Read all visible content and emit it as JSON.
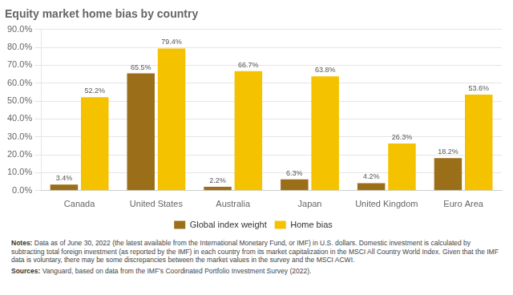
{
  "chart_data": {
    "type": "bar",
    "title": "Equity market home bias by country",
    "categories": [
      "Canada",
      "United States",
      "Australia",
      "Japan",
      "United Kingdom",
      "Euro Area"
    ],
    "series": [
      {
        "name": "Global index weight",
        "color": "#9B6E1A",
        "values": [
          3.4,
          65.5,
          2.2,
          6.3,
          4.2,
          18.2
        ],
        "value_labels": [
          "3.4%",
          "65.5%",
          "2.2%",
          "6.3%",
          "4.2%",
          "18.2%"
        ]
      },
      {
        "name": "Home bias",
        "color": "#F5C200",
        "values": [
          52.2,
          79.4,
          66.7,
          63.8,
          26.3,
          53.6
        ],
        "value_labels": [
          "52.2%",
          "79.4%",
          "66.7%",
          "63.8%",
          "26.3%",
          "53.6%"
        ]
      }
    ],
    "ylim": [
      0,
      90
    ],
    "yticks": [
      {
        "value": 0,
        "label": "0.0%"
      },
      {
        "value": 10,
        "label": "10.0%"
      },
      {
        "value": 20,
        "label": "20.0%"
      },
      {
        "value": 30,
        "label": "30.0%"
      },
      {
        "value": 40,
        "label": "40.0%"
      },
      {
        "value": 50,
        "label": "50.0%"
      },
      {
        "value": 60,
        "label": "60.0%"
      },
      {
        "value": 70,
        "label": "70.0%"
      },
      {
        "value": 80,
        "label": "80.0%"
      },
      {
        "value": 90,
        "label": "90.0%"
      }
    ],
    "grid": true,
    "legend": "bottom",
    "data_labels": true,
    "notes": [
      {
        "label": "Notes:",
        "text": "Data as of June 30, 2022 (the latest available from the International Monetary Fund, or IMF) in U.S. dollars. Domestic investment is calculated by subtracting total foreign investment (as reported by the IMF) in each country from its market capitalization in the MSCI All Country World Index. Given that the IMF data is voluntary, there may be some discrepancies between the market values in the survey and the MSCI ACWI."
      },
      {
        "label": "Sources:",
        "text": "Vanguard, based on data from the IMF’s Coordinated Portfolio Investment Survey (2022)."
      }
    ]
  }
}
